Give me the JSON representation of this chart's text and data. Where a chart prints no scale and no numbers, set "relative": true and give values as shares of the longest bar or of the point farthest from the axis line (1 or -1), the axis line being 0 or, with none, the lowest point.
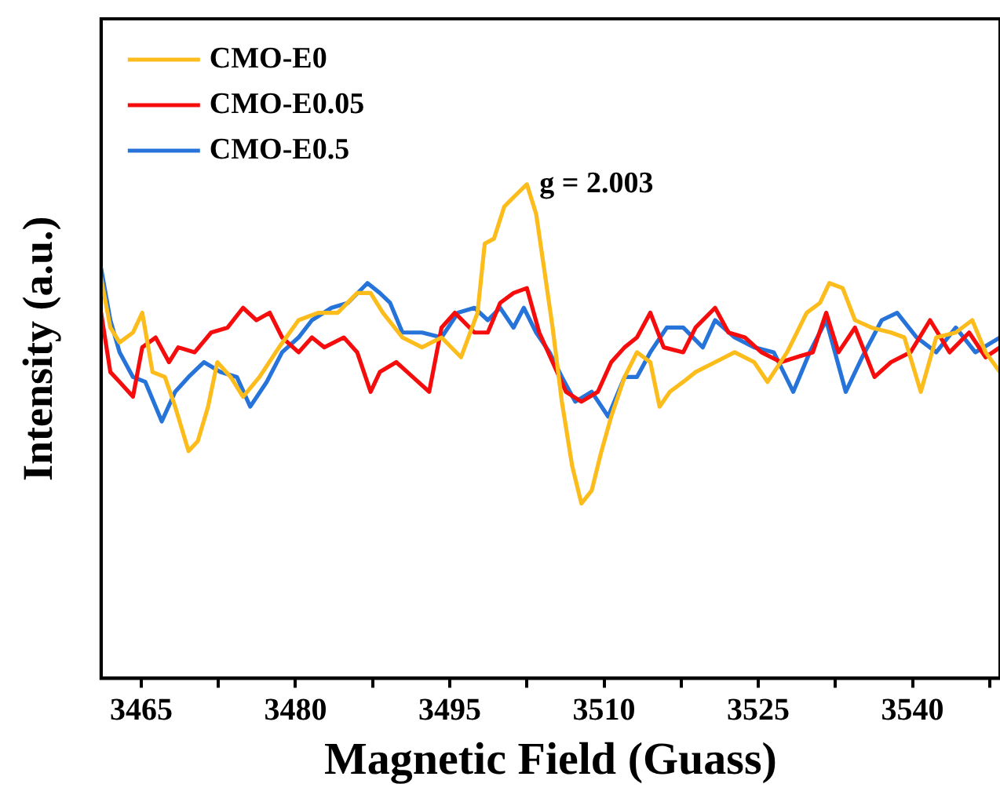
{
  "chart_data": {
    "type": "line",
    "relative": true,
    "xlabel": "Magnetic Field (Guass)",
    "ylabel": "Intensity (a.u.)",
    "legend": "top left",
    "marker": "none",
    "line_style": "solid",
    "grid": false,
    "xlim": [
      3461.1,
      3548.5
    ],
    "xticks": [
      3465,
      {
        "value": 3472.5,
        "label": null
      },
      3480,
      {
        "value": 3487.5,
        "label": null
      },
      3495,
      {
        "value": 3502.5,
        "label": null
      },
      3510,
      {
        "value": 3517.5,
        "label": null
      },
      3525,
      {
        "value": 3532.5,
        "label": null
      },
      3540,
      {
        "value": 3547.5,
        "label": null
      }
    ],
    "annotations": [
      {
        "text": "g = 2.003",
        "x": 3502.5,
        "y": 1.0
      }
    ],
    "series": [
      {
        "name": "CMO-E0",
        "color": "#fbbc1c",
        "x": [
          3461.1,
          3462.0,
          3462.9,
          3464.2,
          3465.1,
          3466.1,
          3467.3,
          3468.3,
          3469.6,
          3470.5,
          3471.5,
          3472.4,
          3473.7,
          3474.9,
          3476.5,
          3478.4,
          3480.3,
          3482.2,
          3484.1,
          3486.0,
          3487.3,
          3488.5,
          3490.4,
          3492.3,
          3494.2,
          3496.1,
          3497.7,
          3498.4,
          3499.3,
          3500.3,
          3501.5,
          3502.5,
          3503.4,
          3504.1,
          3505.0,
          3505.9,
          3506.9,
          3507.8,
          3508.8,
          3509.7,
          3510.7,
          3512.0,
          3513.2,
          3514.5,
          3515.4,
          3516.4,
          3517.7,
          3518.9,
          3520.8,
          3522.7,
          3524.6,
          3525.9,
          3527.8,
          3529.7,
          3531.0,
          3531.9,
          3533.2,
          3534.4,
          3536.0,
          3537.9,
          3539.2,
          3540.8,
          3542.3,
          3544.2,
          3545.8,
          3547.1,
          3548.5
        ],
        "values": [
          0.81,
          0.71,
          0.68,
          0.7,
          0.74,
          0.62,
          0.61,
          0.55,
          0.46,
          0.48,
          0.55,
          0.64,
          0.61,
          0.57,
          0.61,
          0.67,
          0.725,
          0.74,
          0.74,
          0.78,
          0.78,
          0.74,
          0.69,
          0.67,
          0.69,
          0.65,
          0.74,
          0.88,
          0.89,
          0.955,
          0.98,
          1.0,
          0.94,
          0.84,
          0.71,
          0.56,
          0.43,
          0.354,
          0.38,
          0.456,
          0.53,
          0.61,
          0.66,
          0.64,
          0.55,
          0.58,
          0.6,
          0.62,
          0.64,
          0.66,
          0.64,
          0.6,
          0.66,
          0.74,
          0.76,
          0.8,
          0.79,
          0.725,
          0.71,
          0.7,
          0.69,
          0.58,
          0.69,
          0.7,
          0.725,
          0.66,
          0.62
        ]
      },
      {
        "name": "CMO-E0.05",
        "color": "#f50d0d",
        "x": [
          3461.1,
          3462.0,
          3462.9,
          3464.2,
          3465.1,
          3466.4,
          3467.7,
          3468.6,
          3470.2,
          3471.8,
          3473.4,
          3474.9,
          3476.2,
          3477.5,
          3478.7,
          3480.3,
          3481.6,
          3482.8,
          3484.7,
          3486.0,
          3487.3,
          3488.2,
          3489.8,
          3491.4,
          3493.0,
          3494.2,
          3495.5,
          3497.4,
          3498.7,
          3499.9,
          3501.2,
          3502.5,
          3503.7,
          3505.0,
          3506.3,
          3507.8,
          3509.4,
          3510.7,
          3512.0,
          3513.2,
          3514.5,
          3515.8,
          3517.7,
          3518.9,
          3520.8,
          3522.1,
          3523.7,
          3525.3,
          3527.2,
          3528.7,
          3530.3,
          3531.6,
          3532.8,
          3534.4,
          3536.3,
          3537.9,
          3539.8,
          3541.7,
          3543.6,
          3545.5,
          3547.1,
          3548.5
        ],
        "values": [
          0.74,
          0.62,
          0.6,
          0.57,
          0.67,
          0.69,
          0.64,
          0.67,
          0.66,
          0.7,
          0.71,
          0.75,
          0.725,
          0.74,
          0.69,
          0.66,
          0.69,
          0.67,
          0.69,
          0.66,
          0.58,
          0.62,
          0.64,
          0.61,
          0.58,
          0.71,
          0.74,
          0.7,
          0.7,
          0.76,
          0.78,
          0.79,
          0.7,
          0.64,
          0.58,
          0.56,
          0.58,
          0.64,
          0.67,
          0.69,
          0.74,
          0.67,
          0.66,
          0.71,
          0.75,
          0.7,
          0.69,
          0.66,
          0.64,
          0.65,
          0.66,
          0.74,
          0.66,
          0.71,
          0.61,
          0.64,
          0.66,
          0.725,
          0.66,
          0.7,
          0.65,
          0.67
        ]
      },
      {
        "name": "CMO-E0.5",
        "color": "#2673d9",
        "x": [
          3461.1,
          3462.0,
          3462.9,
          3464.2,
          3465.4,
          3467.0,
          3468.3,
          3469.6,
          3471.1,
          3472.7,
          3474.3,
          3475.6,
          3477.2,
          3478.7,
          3480.3,
          3481.6,
          3483.5,
          3485.1,
          3487.0,
          3488.2,
          3489.2,
          3490.4,
          3492.3,
          3494.2,
          3495.8,
          3497.4,
          3498.7,
          3499.9,
          3501.2,
          3502.2,
          3503.4,
          3504.7,
          3505.9,
          3507.2,
          3508.8,
          3510.4,
          3512.0,
          3513.2,
          3514.5,
          3516.1,
          3517.7,
          3519.6,
          3520.8,
          3522.7,
          3524.6,
          3526.5,
          3528.4,
          3530.0,
          3531.6,
          3533.5,
          3535.1,
          3537.0,
          3538.5,
          3540.4,
          3542.3,
          3544.2,
          3546.1,
          3548.5
        ],
        "values": [
          0.83,
          0.725,
          0.66,
          0.61,
          0.6,
          0.52,
          0.58,
          0.61,
          0.64,
          0.62,
          0.61,
          0.55,
          0.6,
          0.66,
          0.69,
          0.725,
          0.75,
          0.76,
          0.8,
          0.78,
          0.76,
          0.7,
          0.7,
          0.69,
          0.74,
          0.75,
          0.725,
          0.75,
          0.71,
          0.75,
          0.7,
          0.66,
          0.61,
          0.56,
          0.58,
          0.53,
          0.61,
          0.61,
          0.66,
          0.71,
          0.71,
          0.67,
          0.725,
          0.69,
          0.67,
          0.66,
          0.58,
          0.66,
          0.725,
          0.58,
          0.65,
          0.725,
          0.74,
          0.69,
          0.66,
          0.71,
          0.66,
          0.69
        ]
      }
    ]
  }
}
